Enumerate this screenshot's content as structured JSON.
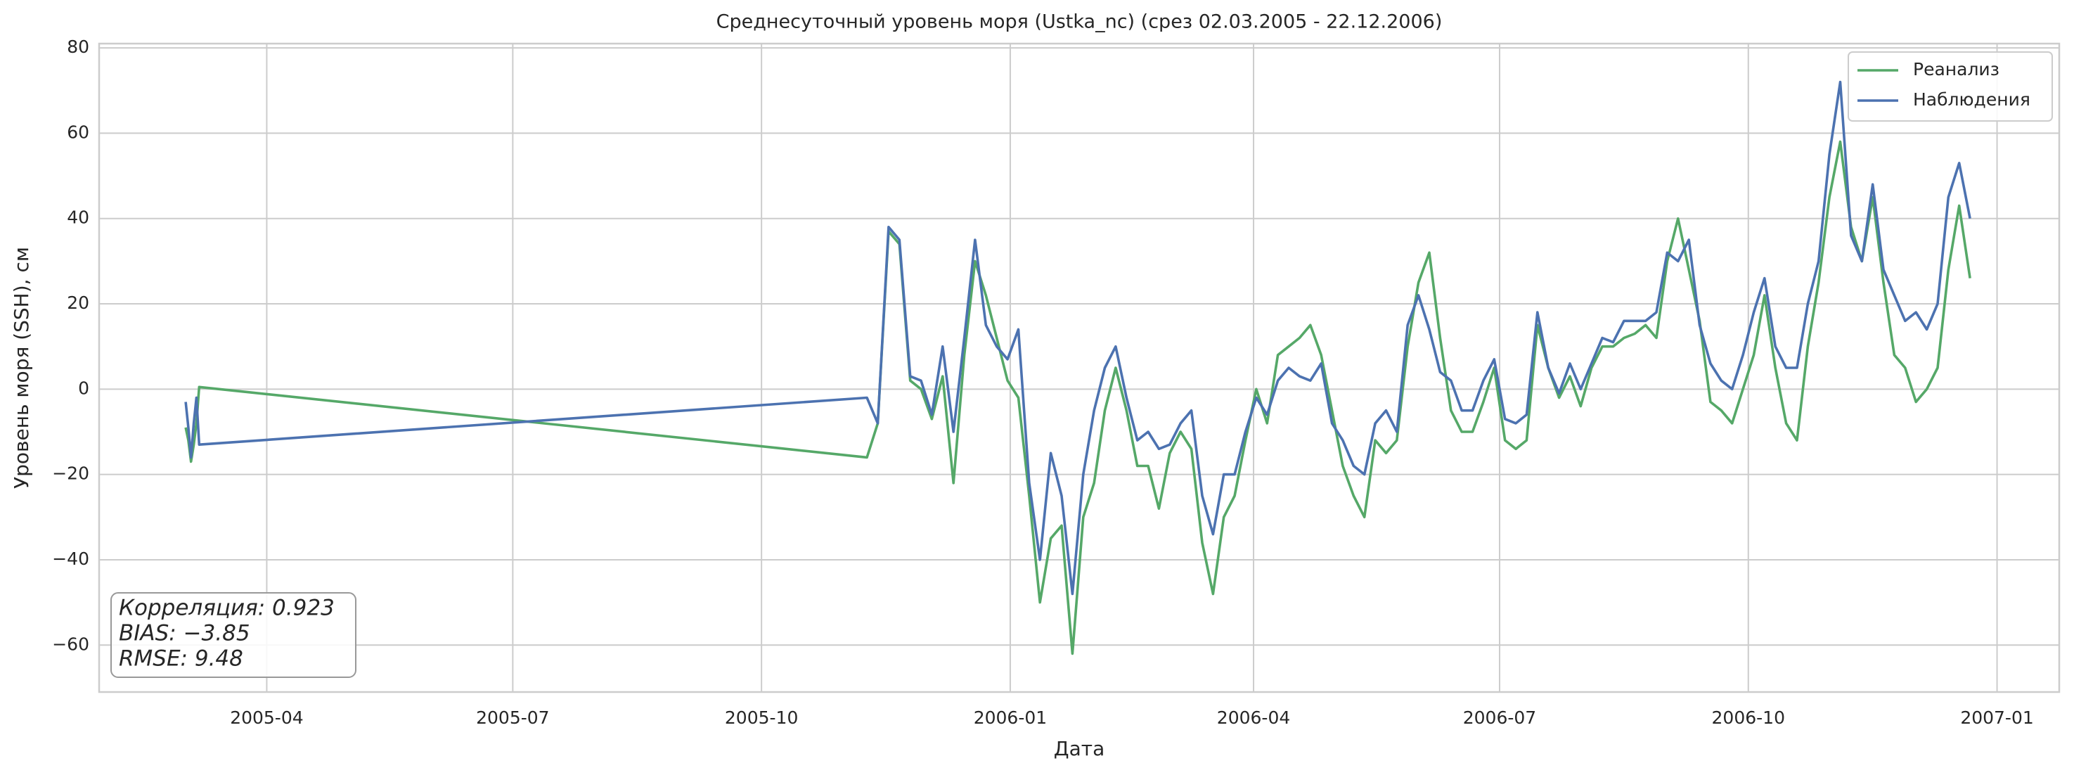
{
  "chart_data": {
    "type": "line",
    "title": "Среднесуточный уровень моря (Ustka_nc) (срез 02.03.2005 - 22.12.2006)",
    "xlabel": "Дата",
    "ylabel": "Уровень моря (SSH), см",
    "x": [
      "2005-03-02",
      "2005-03-03",
      "2005-03-04",
      "2005-03-05",
      "2005-03-06",
      "2005-03-07",
      "2005-11-09",
      "2005-11-13",
      "2005-11-17",
      "2005-11-21",
      "2005-11-25",
      "2005-11-29",
      "2005-12-03",
      "2005-12-07",
      "2005-12-11",
      "2005-12-15",
      "2005-12-19",
      "2005-12-23",
      "2005-12-27",
      "2005-12-31",
      "2006-01-04",
      "2006-01-08",
      "2006-01-12",
      "2006-01-16",
      "2006-01-20",
      "2006-01-24",
      "2006-01-28",
      "2006-02-01",
      "2006-02-05",
      "2006-02-09",
      "2006-02-13",
      "2006-02-17",
      "2006-02-21",
      "2006-02-25",
      "2006-03-01",
      "2006-03-05",
      "2006-03-09",
      "2006-03-13",
      "2006-03-17",
      "2006-03-21",
      "2006-03-25",
      "2006-03-29",
      "2006-04-02",
      "2006-04-06",
      "2006-04-10",
      "2006-04-14",
      "2006-04-18",
      "2006-04-22",
      "2006-04-26",
      "2006-04-30",
      "2006-05-04",
      "2006-05-08",
      "2006-05-12",
      "2006-05-16",
      "2006-05-20",
      "2006-05-24",
      "2006-05-28",
      "2006-06-01",
      "2006-06-05",
      "2006-06-09",
      "2006-06-13",
      "2006-06-17",
      "2006-06-21",
      "2006-06-25",
      "2006-06-29",
      "2006-07-03",
      "2006-07-07",
      "2006-07-11",
      "2006-07-15",
      "2006-07-19",
      "2006-07-23",
      "2006-07-27",
      "2006-07-31",
      "2006-08-04",
      "2006-08-08",
      "2006-08-12",
      "2006-08-16",
      "2006-08-20",
      "2006-08-24",
      "2006-08-28",
      "2006-09-01",
      "2006-09-05",
      "2006-09-09",
      "2006-09-13",
      "2006-09-17",
      "2006-09-21",
      "2006-09-25",
      "2006-09-29",
      "2006-10-03",
      "2006-10-07",
      "2006-10-11",
      "2006-10-15",
      "2006-10-19",
      "2006-10-23",
      "2006-10-27",
      "2006-10-31",
      "2006-11-04",
      "2006-11-08",
      "2006-11-12",
      "2006-11-16",
      "2006-11-20",
      "2006-11-24",
      "2006-11-28",
      "2006-12-02",
      "2006-12-06",
      "2006-12-10",
      "2006-12-14",
      "2006-12-18",
      "2006-12-22"
    ],
    "series": [
      {
        "name": "Реанализ",
        "color": "#55a868",
        "values": [
          -9,
          -12,
          -17,
          -13,
          -8,
          0.5,
          -16,
          -8,
          37,
          34,
          2,
          0,
          -7,
          3,
          -22,
          8,
          30,
          22,
          12,
          2,
          -2,
          -25,
          -50,
          -35,
          -32,
          -62,
          -30,
          -22,
          -5,
          5,
          -5,
          -18,
          -18,
          -28,
          -15,
          -10,
          -14,
          -36,
          -48,
          -30,
          -25,
          -12,
          0,
          -8,
          8,
          10,
          12,
          15,
          8,
          -5,
          -18,
          -25,
          -30,
          -12,
          -15,
          -12,
          10,
          25,
          32,
          12,
          -5,
          -10,
          -10,
          -3,
          5,
          -12,
          -14,
          -12,
          15,
          5,
          -2,
          3,
          -4,
          5,
          10,
          10,
          12,
          13,
          15,
          12,
          30,
          40,
          28,
          16,
          -3,
          -5,
          -8,
          0,
          8,
          22,
          5,
          -8,
          -12,
          10,
          25,
          45,
          58,
          38,
          30,
          45,
          25,
          8,
          5,
          -3,
          0,
          5,
          28,
          43,
          26
        ]
      },
      {
        "name": "Наблюдения",
        "color": "#4c72b0",
        "values": [
          -3,
          -9,
          -16,
          -8,
          -2,
          -13,
          -2,
          -8,
          38,
          35,
          3,
          2,
          -6,
          10,
          -10,
          12,
          35,
          15,
          10,
          7,
          14,
          -22,
          -40,
          -15,
          -25,
          -48,
          -20,
          -5,
          5,
          10,
          -2,
          -12,
          -10,
          -14,
          -13,
          -8,
          -5,
          -25,
          -34,
          -20,
          -20,
          -10,
          -2,
          -6,
          2,
          5,
          3,
          2,
          6,
          -8,
          -12,
          -18,
          -20,
          -8,
          -5,
          -10,
          15,
          22,
          14,
          4,
          2,
          -5,
          -5,
          2,
          7,
          -7,
          -8,
          -6,
          18,
          5,
          -1,
          6,
          0,
          6,
          12,
          11,
          16,
          16,
          16,
          18,
          32,
          30,
          35,
          15,
          6,
          2,
          0,
          8,
          18,
          26,
          10,
          5,
          5,
          20,
          30,
          55,
          72,
          36,
          30,
          48,
          28,
          22,
          16,
          18,
          14,
          20,
          45,
          53,
          40
        ]
      }
    ],
    "xlim": [
      "2005-01-29",
      "2007-01-24"
    ],
    "xticks": [
      "2005-04",
      "2005-07",
      "2005-10",
      "2006-01",
      "2006-04",
      "2006-07",
      "2006-10",
      "2007-01"
    ],
    "ylim": [
      -71,
      81
    ],
    "yticks": [
      {
        "value": -60,
        "label": "−60"
      },
      {
        "value": -40,
        "label": "−40"
      },
      {
        "value": -20,
        "label": "−20"
      },
      0,
      20,
      40,
      60,
      80
    ],
    "grid": true,
    "legend": "upper right",
    "annotation": [
      "Корреляция: 0.923",
      "BIAS: −3.85",
      "RMSE: 9.48"
    ]
  }
}
